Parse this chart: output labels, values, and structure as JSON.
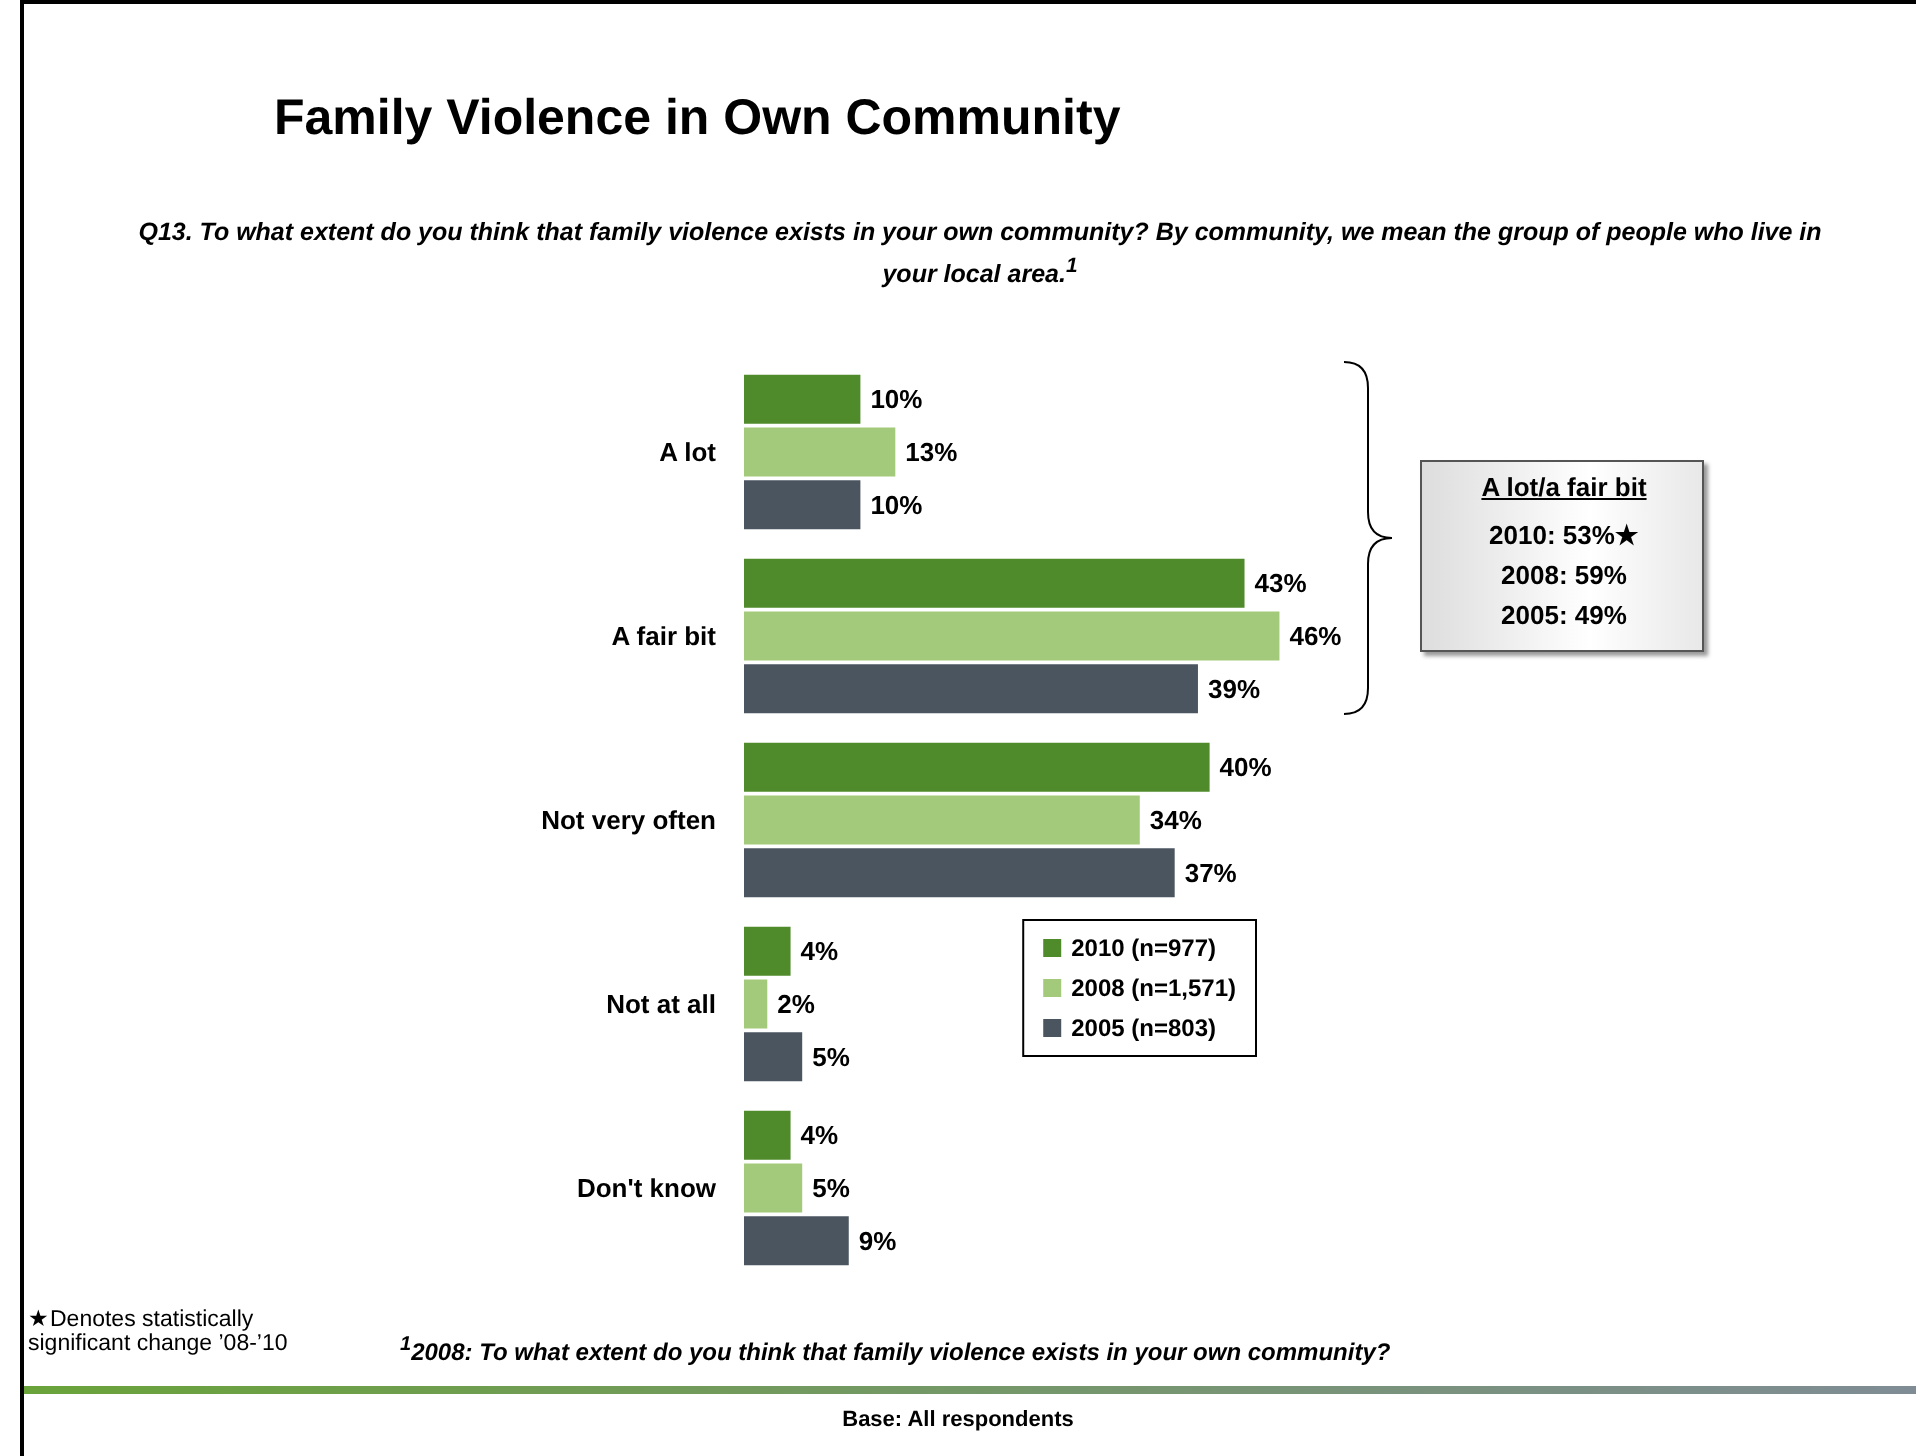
{
  "chart_data": {
    "type": "bar",
    "orientation": "horizontal",
    "title": "Family Violence in Own Community",
    "subtitle": "Q13. To what extent do you think that family violence exists in your own community? By community, we mean the group of people who live in your local area.$^{1}$",
    "categories": [
      "A lot",
      "A fair bit",
      "Not very often",
      "Not at all",
      "Don't know"
    ],
    "series": [
      {
        "name": "2010 (n=977)",
        "color": "#4f8a2b",
        "values": [
          10,
          43,
          40,
          4,
          4
        ],
        "value_labels": [
          "10%",
          "43%",
          "40%",
          "4%",
          "4%"
        ]
      },
      {
        "name": "2008 (n=1,571)",
        "color": "#a3c97a",
        "values": [
          13,
          46,
          34,
          2,
          5
        ],
        "value_labels": [
          "13%",
          "46%",
          "34%",
          "2%",
          "5%"
        ]
      },
      {
        "name": "2005 (n=803)",
        "color": "#4b5560",
        "values": [
          10,
          39,
          37,
          5,
          9
        ],
        "value_labels": [
          "10%",
          "39%",
          "37%",
          "5%",
          "9%"
        ]
      }
    ],
    "legend": "right",
    "tick_labels": "y",
    "annotations": [
      "A lot/a fair bit",
      "2010: 53%★",
      "2008: 59%",
      "2005: 49%",
      "★Denotes statistically significant change ’08-’10",
      "$^{1}$2008: To what extent do you think that family violence exists in your own community?",
      "Base: All respondents"
    ]
  }
}
